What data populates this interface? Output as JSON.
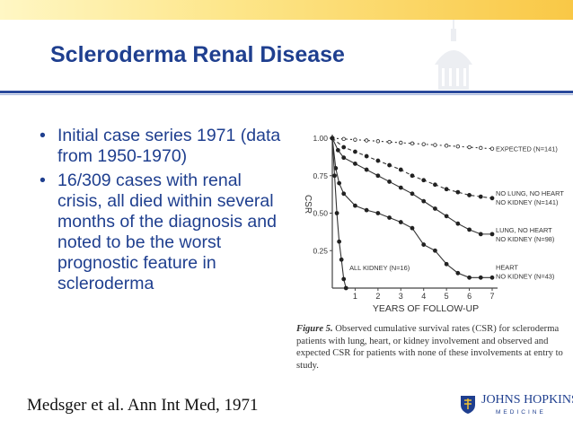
{
  "slide": {
    "title": "Scleroderma Renal Disease",
    "bullets": [
      {
        "marker": "•",
        "text": "Initial case series 1971 (data from 1950-1970)"
      },
      {
        "marker": "•",
        "text": "16/309 cases with renal crisis, all died within several months of the diagnosis and noted to be the worst prognostic feature in scleroderma"
      }
    ],
    "citation": "Medsger et al. Ann Int Med, 1971"
  },
  "figure": {
    "caption_label": "Figure 5.",
    "caption_text": "Observed cumulative survival rates (CSR) for scleroderma patients with lung, heart, or kidney involvement and observed and expected CSR for patients with none of these involvements at entry to study."
  },
  "chart_data": {
    "type": "line",
    "xlabel": "YEARS OF FOLLOW-UP",
    "ylabel": "CSR",
    "x_ticks": [
      "1",
      "2",
      "3",
      "4",
      "5",
      "6",
      "7"
    ],
    "y_ticks": [
      "0.25",
      "0.50",
      "0.75",
      "1.00"
    ],
    "xlim": [
      0,
      7
    ],
    "ylim": [
      0,
      1
    ],
    "series": [
      {
        "name": "EXPECTED (N=141)",
        "label_lines": [
          "EXPECTED (N=141)"
        ],
        "style": "dotted-open",
        "x": [
          0,
          0.5,
          1,
          1.5,
          2,
          2.5,
          3,
          3.5,
          4,
          4.5,
          5,
          5.5,
          6,
          6.5,
          7
        ],
        "y": [
          1.0,
          0.995,
          0.99,
          0.985,
          0.98,
          0.975,
          0.97,
          0.965,
          0.96,
          0.955,
          0.95,
          0.945,
          0.94,
          0.935,
          0.93
        ]
      },
      {
        "name": "NO LUNG, NO HEART NO KIDNEY (N=141)",
        "label_lines": [
          "NO LUNG, NO HEART",
          "NO KIDNEY (N=141)"
        ],
        "style": "dashed-filled",
        "x": [
          0,
          0.5,
          1,
          1.5,
          2,
          2.5,
          3,
          3.5,
          4,
          4.5,
          5,
          5.5,
          6,
          6.5,
          7
        ],
        "y": [
          1.0,
          0.94,
          0.91,
          0.88,
          0.85,
          0.82,
          0.79,
          0.75,
          0.72,
          0.69,
          0.66,
          0.64,
          0.62,
          0.61,
          0.6
        ]
      },
      {
        "name": "LUNG, NO HEART NO KIDNEY (N=98)",
        "label_lines": [
          "LUNG, NO HEART",
          "NO KIDNEY (N=98)"
        ],
        "style": "solid-filled",
        "x": [
          0,
          0.25,
          0.5,
          1,
          1.5,
          2,
          2.5,
          3,
          3.5,
          4,
          4.5,
          5,
          5.5,
          6,
          6.5,
          7
        ],
        "y": [
          1.0,
          0.92,
          0.87,
          0.83,
          0.79,
          0.75,
          0.71,
          0.67,
          0.63,
          0.58,
          0.53,
          0.48,
          0.43,
          0.39,
          0.36,
          0.36
        ]
      },
      {
        "name": "HEART NO KIDNEY (N=43)",
        "label_lines": [
          "HEART",
          "NO KIDNEY (N=43)"
        ],
        "style": "solid-filled",
        "x": [
          0,
          0.15,
          0.3,
          0.5,
          1,
          1.5,
          2,
          2.5,
          3,
          3.5,
          4,
          4.5,
          5,
          5.5,
          6,
          6.5,
          7
        ],
        "y": [
          1.0,
          0.8,
          0.7,
          0.63,
          0.55,
          0.52,
          0.5,
          0.47,
          0.44,
          0.4,
          0.29,
          0.25,
          0.16,
          0.1,
          0.07,
          0.07,
          0.07
        ]
      },
      {
        "name": "ALL KIDNEY (N=16)",
        "label_lines": [
          "ALL KIDNEY (N=16)"
        ],
        "style": "solid-filled",
        "x": [
          0,
          0.1,
          0.2,
          0.3,
          0.4,
          0.5,
          0.6
        ],
        "y": [
          1.0,
          0.75,
          0.5,
          0.31,
          0.19,
          0.06,
          0.0
        ]
      }
    ]
  },
  "logo": {
    "name": "JOHNS HOPKINS",
    "sub": "MEDICINE"
  }
}
